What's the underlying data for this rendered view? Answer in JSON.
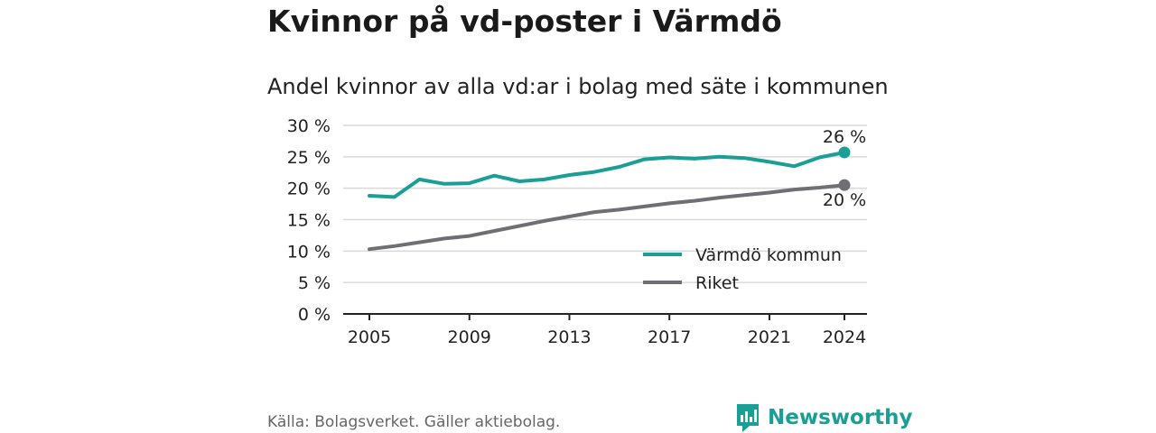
{
  "title": "Kvinnor på vd-poster i Värmdö",
  "subtitle": "Andel kvinnor av alla vd:ar i bolag med säte i kommunen",
  "source": "Källa: Bolagsverket. Gäller aktiebolag.",
  "logo_text": "Newsworthy",
  "colors": {
    "teal": "#1a9e95",
    "gray": "#6f6e75",
    "grid": "#d9d9d9",
    "axis": "#222222"
  },
  "chart_data": {
    "type": "line",
    "x": [
      2005,
      2006,
      2007,
      2008,
      2009,
      2010,
      2011,
      2012,
      2013,
      2014,
      2015,
      2016,
      2017,
      2018,
      2019,
      2020,
      2021,
      2022,
      2023,
      2024
    ],
    "series": [
      {
        "name": "Värmdö kommun",
        "color": "#1a9e95",
        "values": [
          18.8,
          18.6,
          21.4,
          20.7,
          20.8,
          22.0,
          21.1,
          21.4,
          22.1,
          22.6,
          23.4,
          24.6,
          24.9,
          24.7,
          25.0,
          24.8,
          24.2,
          23.5,
          24.9,
          25.7
        ],
        "end_label": "26 %"
      },
      {
        "name": "Riket",
        "color": "#6f6e75",
        "values": [
          10.3,
          10.8,
          11.4,
          12.0,
          12.4,
          13.2,
          14.0,
          14.8,
          15.5,
          16.2,
          16.6,
          17.1,
          17.6,
          18.0,
          18.5,
          18.9,
          19.3,
          19.8,
          20.1,
          20.5
        ],
        "end_label": "20 %"
      }
    ],
    "ylim": [
      0,
      30
    ],
    "yticks": [
      0,
      5,
      10,
      15,
      20,
      25,
      30
    ],
    "ytick_labels": [
      "0 %",
      "5 %",
      "10 %",
      "15 %",
      "20 %",
      "25 %",
      "30 %"
    ],
    "xticks": [
      2005,
      2009,
      2013,
      2017,
      2021,
      2024
    ],
    "xtick_labels": [
      "2005",
      "2009",
      "2013",
      "2017",
      "2021",
      "2024"
    ],
    "legend_position": "bottom-right",
    "grid": true
  }
}
